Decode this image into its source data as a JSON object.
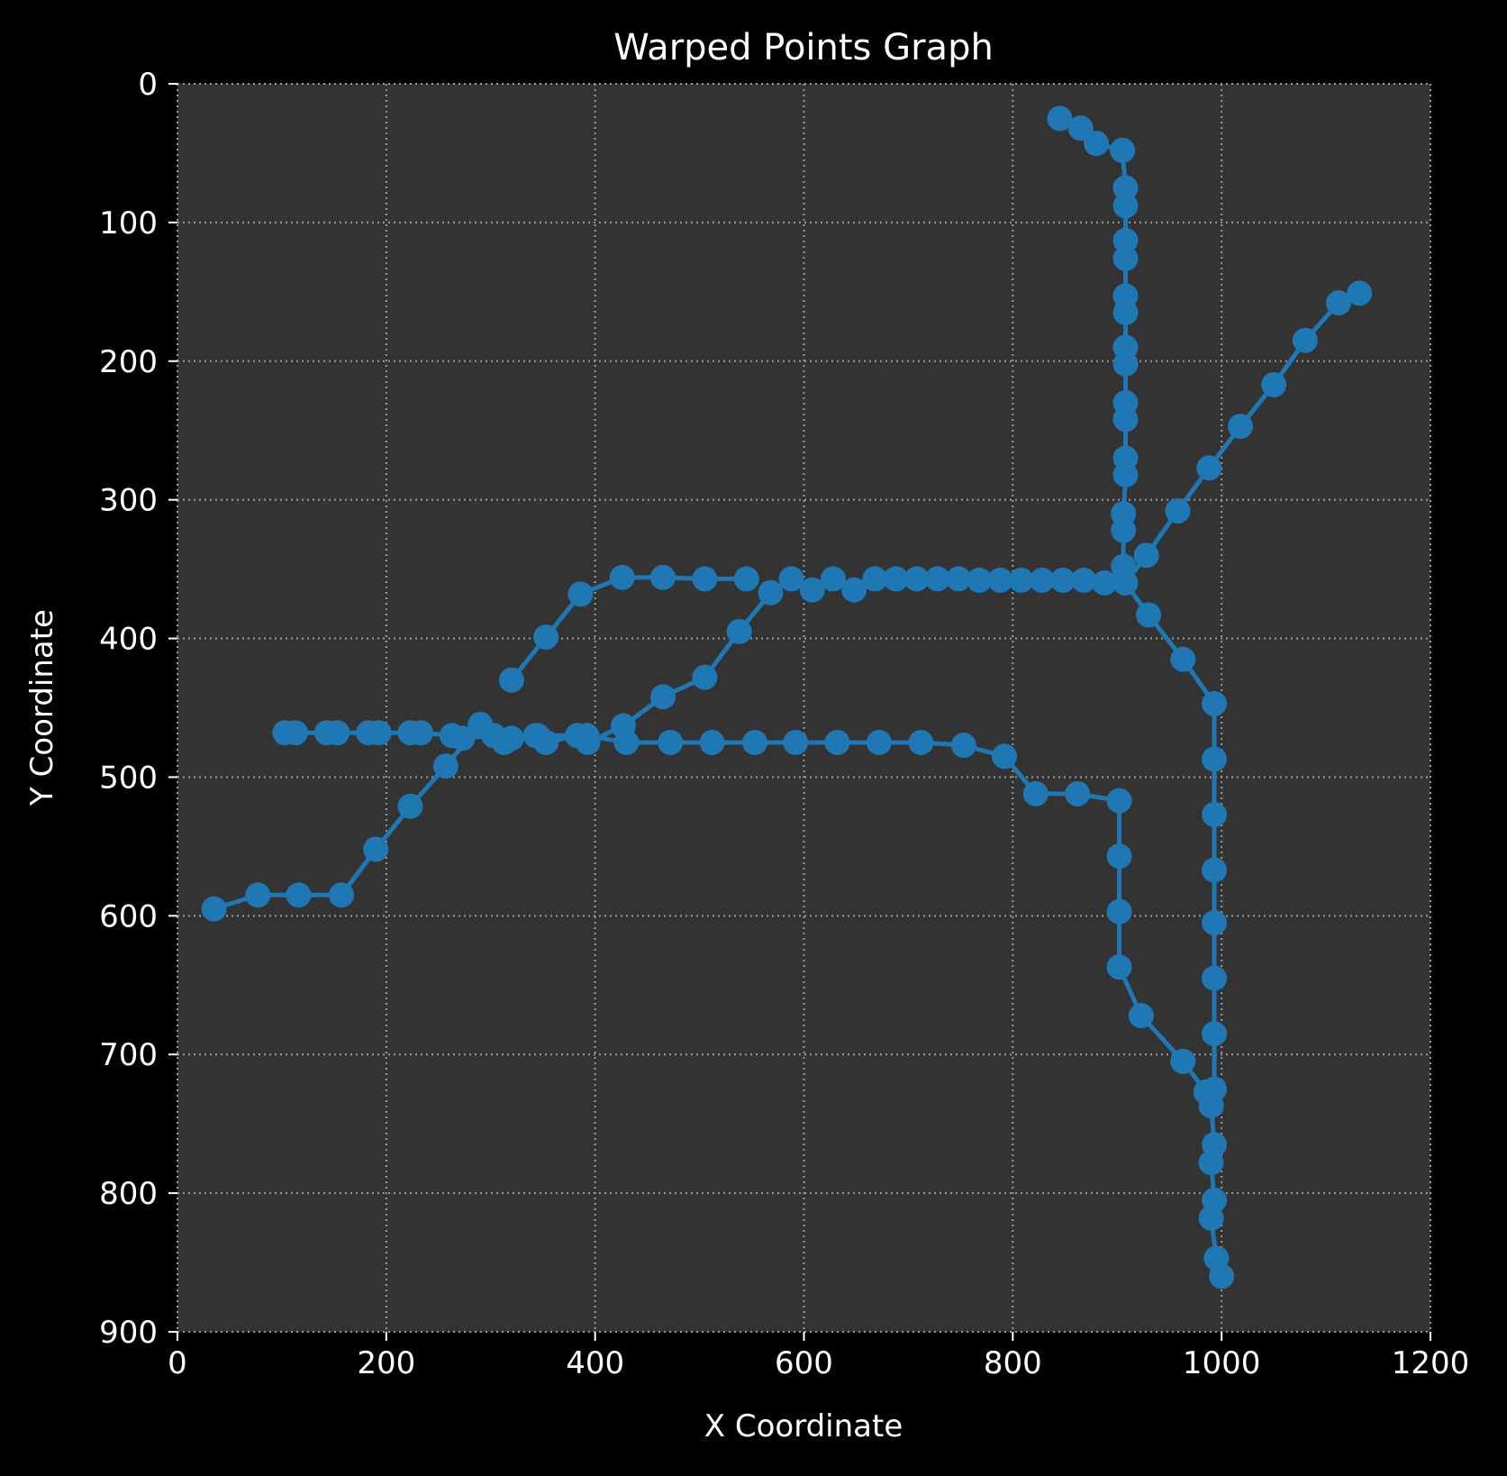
{
  "chart_data": {
    "type": "line",
    "title": "Warped Points Graph",
    "xlabel": "X Coordinate",
    "ylabel": "Y Coordinate",
    "xlim": [
      0,
      1200
    ],
    "ylim": [
      900,
      0
    ],
    "y_inverted": true,
    "x_ticks": [
      0,
      200,
      400,
      600,
      800,
      1000,
      1200
    ],
    "y_ticks": [
      0,
      100,
      200,
      300,
      400,
      500,
      600,
      700,
      800,
      900
    ],
    "x_tick_labels": [
      "0",
      "200",
      "400",
      "600",
      "800",
      "1000",
      "1200"
    ],
    "y_tick_labels": [
      "0",
      "100",
      "200",
      "300",
      "400",
      "500",
      "600",
      "700",
      "800",
      "900"
    ],
    "grid": true,
    "grid_style": "dotted",
    "marker": "circle",
    "series": [
      {
        "points": [
          [
            845,
            25
          ],
          [
            865,
            32
          ],
          [
            880,
            43
          ],
          [
            905,
            48
          ],
          [
            908,
            75
          ],
          [
            908,
            88
          ],
          [
            908,
            113
          ],
          [
            908,
            126
          ],
          [
            908,
            153
          ],
          [
            908,
            165
          ],
          [
            908,
            190
          ],
          [
            908,
            202
          ],
          [
            908,
            230
          ],
          [
            908,
            242
          ],
          [
            908,
            270
          ],
          [
            908,
            282
          ],
          [
            906,
            310
          ],
          [
            906,
            322
          ],
          [
            906,
            348
          ],
          [
            906,
            358
          ],
          [
            930,
            383
          ],
          [
            963,
            415
          ],
          [
            993,
            447
          ],
          [
            993,
            487
          ],
          [
            993,
            527
          ],
          [
            993,
            567
          ],
          [
            993,
            605
          ],
          [
            993,
            645
          ],
          [
            993,
            685
          ],
          [
            993,
            725
          ],
          [
            990,
            737
          ],
          [
            993,
            765
          ],
          [
            990,
            778
          ],
          [
            993,
            805
          ],
          [
            990,
            818
          ],
          [
            995,
            847
          ],
          [
            1000,
            860
          ]
        ]
      },
      {
        "points": [
          [
            35,
            595
          ],
          [
            77,
            585
          ],
          [
            116,
            585
          ],
          [
            157,
            585
          ],
          [
            190,
            552
          ],
          [
            223,
            521
          ],
          [
            257,
            492
          ],
          [
            290,
            462
          ],
          [
            320,
            472
          ],
          [
            345,
            470
          ],
          [
            392,
            470
          ],
          [
            430,
            475
          ],
          [
            472,
            475
          ],
          [
            512,
            475
          ],
          [
            553,
            475
          ],
          [
            592,
            475
          ],
          [
            632,
            475
          ],
          [
            672,
            475
          ],
          [
            712,
            475
          ],
          [
            753,
            477
          ],
          [
            792,
            485
          ],
          [
            822,
            512
          ],
          [
            862,
            512
          ],
          [
            902,
            517
          ],
          [
            902,
            557
          ],
          [
            902,
            597
          ],
          [
            902,
            637
          ],
          [
            923,
            672
          ],
          [
            963,
            705
          ],
          [
            985,
            727
          ]
        ]
      },
      {
        "points": [
          [
            103,
            468
          ],
          [
            113,
            468
          ],
          [
            143,
            468
          ],
          [
            153,
            468
          ],
          [
            183,
            468
          ],
          [
            193,
            468
          ],
          [
            223,
            468
          ],
          [
            233,
            468
          ],
          [
            263,
            470
          ],
          [
            273,
            472
          ],
          [
            303,
            470
          ],
          [
            313,
            475
          ],
          [
            343,
            470
          ],
          [
            353,
            475
          ],
          [
            383,
            470
          ],
          [
            393,
            475
          ],
          [
            427,
            463
          ],
          [
            465,
            442
          ],
          [
            505,
            428
          ],
          [
            538,
            395
          ],
          [
            568,
            367
          ],
          [
            588,
            357
          ],
          [
            608,
            365
          ],
          [
            628,
            357
          ],
          [
            648,
            365
          ],
          [
            668,
            357
          ],
          [
            688,
            357
          ],
          [
            708,
            357
          ],
          [
            728,
            357
          ],
          [
            748,
            357
          ],
          [
            768,
            358
          ],
          [
            788,
            358
          ],
          [
            808,
            358
          ],
          [
            828,
            358
          ],
          [
            848,
            358
          ],
          [
            868,
            358
          ],
          [
            888,
            360
          ],
          [
            908,
            360
          ],
          [
            928,
            340
          ],
          [
            958,
            308
          ],
          [
            988,
            277
          ],
          [
            1018,
            247
          ],
          [
            1050,
            217
          ],
          [
            1080,
            185
          ],
          [
            1112,
            158
          ],
          [
            1132,
            151
          ]
        ]
      },
      {
        "points": [
          [
            320,
            430
          ],
          [
            353,
            399
          ],
          [
            386,
            368
          ],
          [
            426,
            356
          ],
          [
            465,
            356
          ],
          [
            505,
            357
          ],
          [
            545,
            357
          ]
        ]
      }
    ]
  },
  "colors": {
    "background": "#000000",
    "plot_background": "#333333",
    "series": "#1f77b4",
    "grid": "#9a9a9a",
    "text": "#ffffff"
  }
}
